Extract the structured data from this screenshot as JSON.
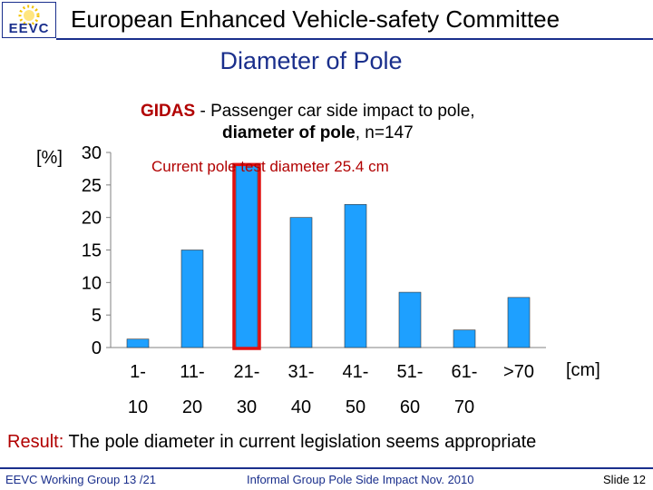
{
  "header": {
    "logo_text": "EEVC",
    "title": "European Enhanced Vehicle-safety Committee"
  },
  "slide_title": "Diameter of Pole",
  "chart_title": {
    "prefix": "GIDAS",
    "line1_rest": " - Passenger car side impact to pole,",
    "line2_bold": "diameter of pole",
    "line2_rest": ", n=147"
  },
  "chart_data": {
    "type": "bar",
    "categories": [
      [
        "1-",
        "10"
      ],
      [
        "11-",
        "20"
      ],
      [
        "21-",
        "30"
      ],
      [
        "31-",
        "40"
      ],
      [
        "41-",
        "50"
      ],
      [
        "51-",
        "60"
      ],
      [
        "61-",
        "70"
      ],
      [
        ">70",
        ""
      ]
    ],
    "values": [
      1.3,
      15,
      28,
      20,
      22,
      8.5,
      2.7,
      7.7
    ],
    "ylim": [
      0,
      30
    ],
    "yticks": [
      0,
      5,
      10,
      15,
      20,
      25,
      30
    ],
    "ylabel": "[%]",
    "xlabel": "[cm]",
    "bar_color": "#1ea0ff",
    "highlight_index": 2,
    "highlight_color": "#e01010",
    "annotation": "Current pole test diameter 25.4 cm"
  },
  "result": {
    "label": "Result:",
    "text": " The pole diameter in current legislation seems appropriate"
  },
  "footer": {
    "left": "EEVC Working Group 13 /21",
    "middle": "Informal Group Pole Side Impact Nov. 2010",
    "right": "Slide 12"
  }
}
